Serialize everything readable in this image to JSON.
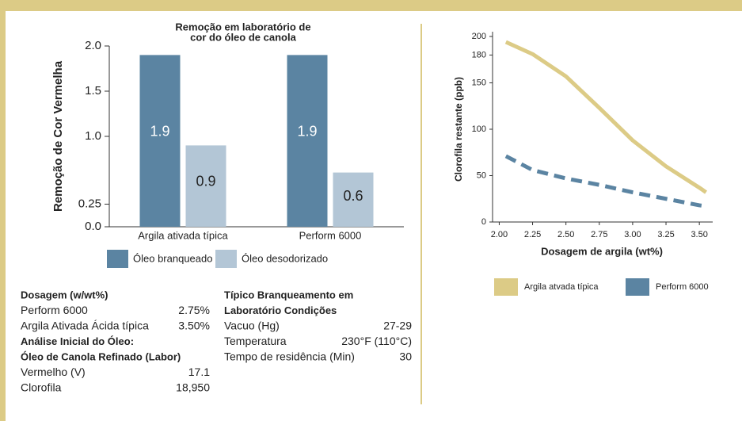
{
  "chart_data": [
    {
      "type": "bar",
      "title": [
        "Remoção em laboratório de",
        "cor do óleo de canola"
      ],
      "y_label": "Remoção de Cor Vermelha",
      "categories": [
        "Argila ativada típica",
        "Perform 6000"
      ],
      "series": [
        {
          "name": "Óleo branqueado",
          "color": "#5b84a2",
          "label_color": "#ffffff",
          "values": [
            1.9,
            1.9
          ]
        },
        {
          "name": "Óleo desodorizado",
          "color": "#b3c6d6",
          "label_color": "#222222",
          "values": [
            0.9,
            0.6
          ]
        }
      ],
      "ylim": [
        0,
        2
      ],
      "yticks": [
        {
          "value": 0,
          "label": "0.0"
        },
        0.25,
        {
          "value": 1,
          "label": "1.0"
        },
        1.5,
        {
          "value": 2,
          "label": "2.0"
        }
      ]
    },
    {
      "type": "line",
      "x_label": "Dosagem de argila (wt%)",
      "y_label": "Clorofila restante (ppb)",
      "x": [
        2.05,
        2.25,
        2.5,
        2.75,
        3.0,
        3.25,
        3.5,
        3.55
      ],
      "series": [
        {
          "name": "Argila atvada típica",
          "color": "#dccb86",
          "line_style": "solid",
          "values": [
            194,
            181,
            157,
            123,
            88,
            60,
            37,
            32
          ]
        },
        {
          "name": "Perform 6000",
          "color": "#5b84a2",
          "line_style": "dashed",
          "values": [
            71,
            56,
            47,
            40,
            32,
            25,
            18,
            17
          ]
        }
      ],
      "xlim": [
        1.95,
        3.6
      ],
      "xticks": [
        {
          "value": 2,
          "label": "2.00"
        },
        2.25,
        {
          "value": 2.5,
          "label": "2.50"
        },
        2.75,
        {
          "value": 3,
          "label": "3.00"
        },
        3.25,
        {
          "value": 3.5,
          "label": "3.50"
        }
      ],
      "ylim": [
        0,
        200
      ],
      "yticks": [
        0,
        50,
        100,
        150,
        180,
        200
      ]
    }
  ],
  "tables": {
    "dosage": {
      "title": "Dosagem (w/wt%)",
      "rows": [
        [
          "Perform 6000",
          "2.75%"
        ],
        [
          "Argila Ativada Ácida típica",
          "3.50%"
        ]
      ]
    },
    "analysis": {
      "title": [
        "Análise Inicial do Óleo:",
        "Óleo de Canola Refinado (Labor)"
      ],
      "rows": [
        [
          "Vermelho (V)",
          "17.1"
        ],
        [
          "Clorofila",
          "18,950"
        ]
      ]
    },
    "conditions": {
      "title": [
        "Típico Branqueamento em",
        "Laboratório Condições"
      ],
      "rows": [
        [
          "Vacuo (Hg)",
          "27-29"
        ],
        [
          "Temperatura",
          "230°F (110°C)"
        ],
        [
          "Tempo de residência (Min)",
          "30"
        ]
      ]
    }
  }
}
